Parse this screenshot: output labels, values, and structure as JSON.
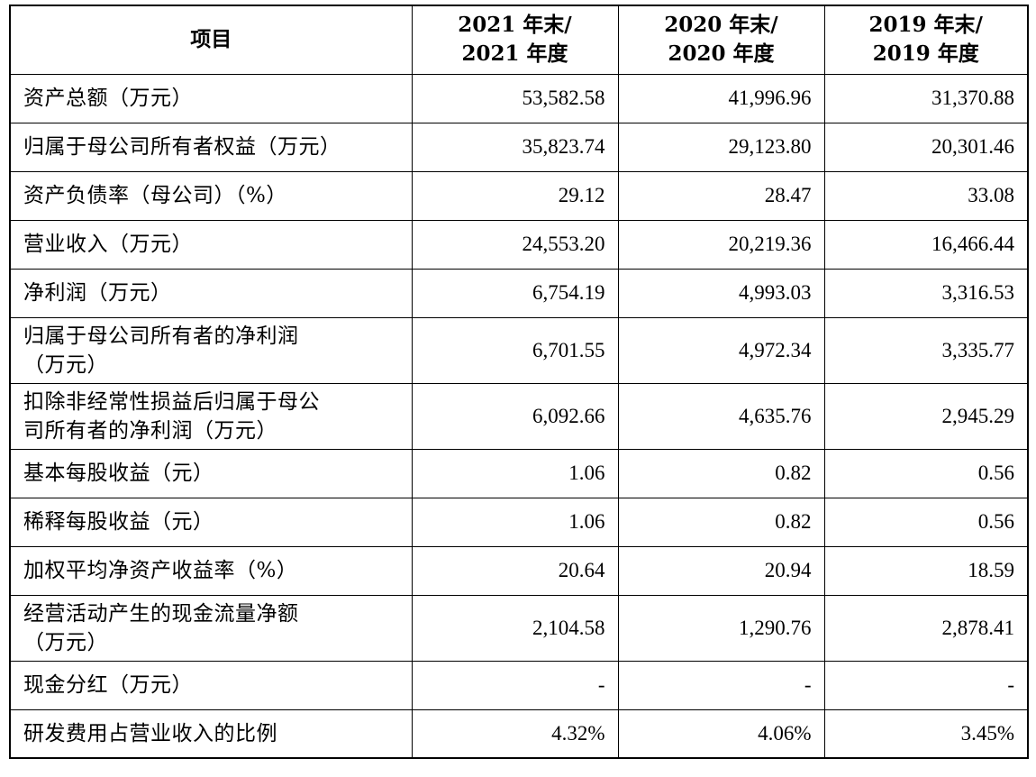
{
  "header": {
    "item": "项目",
    "col2021_line1": "2021 年末/",
    "col2021_line2": "2021 年度",
    "col2020_line1": "2020 年末/",
    "col2020_line2": "2020 年度",
    "col2019_line1": "2019 年末/",
    "col2019_line2": "2019 年度"
  },
  "rows": [
    {
      "label1": "资产总额（万元）",
      "label2": "",
      "v2021": "53,582.58",
      "v2020": "41,996.96",
      "v2019": "31,370.88"
    },
    {
      "label1": "归属于母公司所有者权益（万元）",
      "label2": "",
      "v2021": "35,823.74",
      "v2020": "29,123.80",
      "v2019": "20,301.46"
    },
    {
      "label1": "资产负债率（母公司）（%）",
      "label2": "",
      "v2021": "29.12",
      "v2020": "28.47",
      "v2019": "33.08"
    },
    {
      "label1": "营业收入（万元）",
      "label2": "",
      "v2021": "24,553.20",
      "v2020": "20,219.36",
      "v2019": "16,466.44"
    },
    {
      "label1": "净利润（万元）",
      "label2": "",
      "v2021": "6,754.19",
      "v2020": "4,993.03",
      "v2019": "3,316.53"
    },
    {
      "label1": "归属于母公司所有者的净利润",
      "label2": "（万元）",
      "v2021": "6,701.55",
      "v2020": "4,972.34",
      "v2019": "3,335.77"
    },
    {
      "label1": "扣除非经常性损益后归属于母公",
      "label2": "司所有者的净利润（万元）",
      "v2021": "6,092.66",
      "v2020": "4,635.76",
      "v2019": "2,945.29"
    },
    {
      "label1": "基本每股收益（元）",
      "label2": "",
      "v2021": "1.06",
      "v2020": "0.82",
      "v2019": "0.56"
    },
    {
      "label1": "稀释每股收益（元）",
      "label2": "",
      "v2021": "1.06",
      "v2020": "0.82",
      "v2019": "0.56"
    },
    {
      "label1": "加权平均净资产收益率（%）",
      "label2": "",
      "v2021": "20.64",
      "v2020": "20.94",
      "v2019": "18.59"
    },
    {
      "label1": "经营活动产生的现金流量净额",
      "label2": "（万元）",
      "v2021": "2,104.58",
      "v2020": "1,290.76",
      "v2019": "2,878.41"
    },
    {
      "label1": "现金分红（万元）",
      "label2": "",
      "v2021": "-",
      "v2020": "-",
      "v2019": "-"
    },
    {
      "label1": "研发费用占营业收入的比例",
      "label2": "",
      "v2021": "4.32%",
      "v2020": "4.06%",
      "v2019": "3.45%"
    }
  ]
}
